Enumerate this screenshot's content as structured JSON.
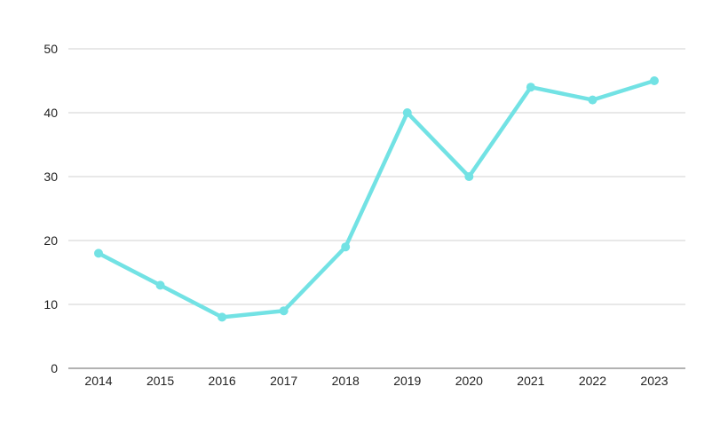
{
  "chart_data": {
    "type": "line",
    "title": "",
    "xlabel": "",
    "ylabel": "",
    "categories": [
      "2014",
      "2015",
      "2016",
      "2017",
      "2018",
      "2019",
      "2020",
      "2021",
      "2022",
      "2023"
    ],
    "series": [
      {
        "values": [
          18,
          13,
          8,
          9,
          19,
          40,
          30,
          44,
          42,
          45
        ],
        "color": "#72e2e4"
      }
    ],
    "ylim": [
      0,
      50
    ],
    "yticks": [
      0,
      10,
      20,
      30,
      40,
      50
    ],
    "grid": true,
    "legend": "none",
    "colors": {
      "grid": "#d9d9d9",
      "axis": "#999999",
      "line": "#72e2e4"
    }
  }
}
